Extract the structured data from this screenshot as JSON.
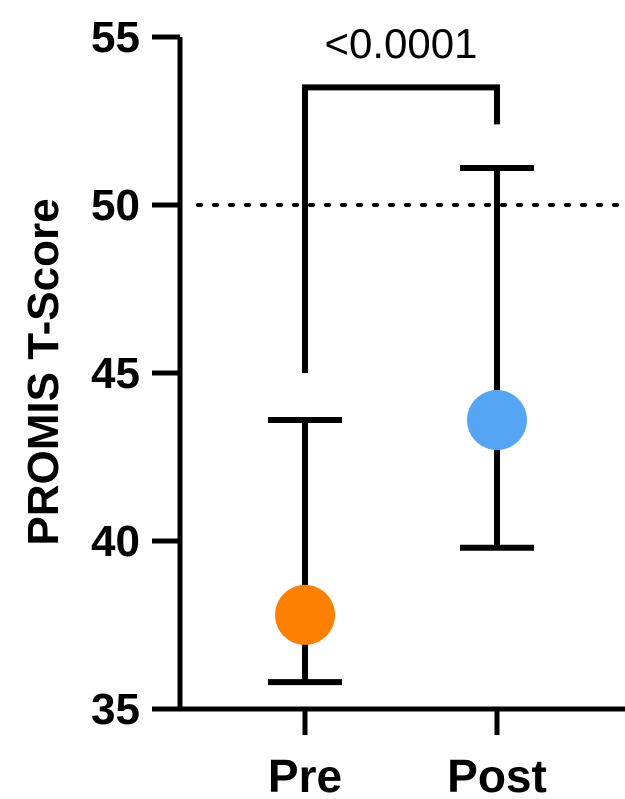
{
  "chart_data": {
    "type": "scatter",
    "ylabel": "PROMIS T-Score",
    "categories": [
      "Pre",
      "Post"
    ],
    "ylim": [
      35,
      55
    ],
    "yticks": [
      "35",
      "40",
      "45",
      "50",
      "55"
    ],
    "reference_line": 50,
    "points": [
      {
        "category": "Pre",
        "mean": 37.8,
        "lower": 35.8,
        "upper": 43.6,
        "color": "#ff8000"
      },
      {
        "category": "Post",
        "mean": 43.6,
        "lower": 39.8,
        "upper": 51.1,
        "color": "#56a5f5"
      }
    ],
    "significance": {
      "label": "<0.0001",
      "bracket_y": 53.5,
      "left_end": 45.0,
      "right_end": 52.4
    }
  }
}
